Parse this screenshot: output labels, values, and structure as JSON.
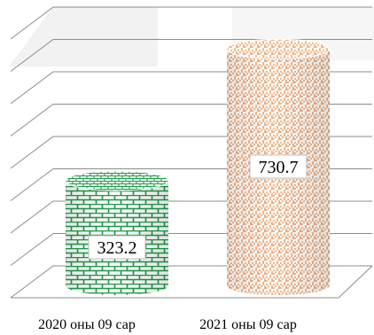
{
  "chart_data": {
    "type": "bar",
    "style": "3d-cylinder",
    "categories": [
      "2020 оны 09 сар",
      "2021 оны 09 сар"
    ],
    "values": [
      323.2,
      730.7
    ],
    "data_labels": [
      "323.2",
      "730.7"
    ],
    "title": "",
    "xlabel": "",
    "ylabel": "",
    "ylim": [
      0,
      800
    ],
    "grid": true,
    "legend": "none",
    "series": [
      {
        "values": [
          323.2,
          730.7
        ],
        "fills": [
          "green-brick-pattern",
          "orange-weave-pattern"
        ],
        "colors": [
          "#1f9a4a",
          "#f08a3c"
        ]
      }
    ],
    "colors": {
      "grid": "#8c8c8c",
      "background_band": "#f2f2f2"
    }
  }
}
